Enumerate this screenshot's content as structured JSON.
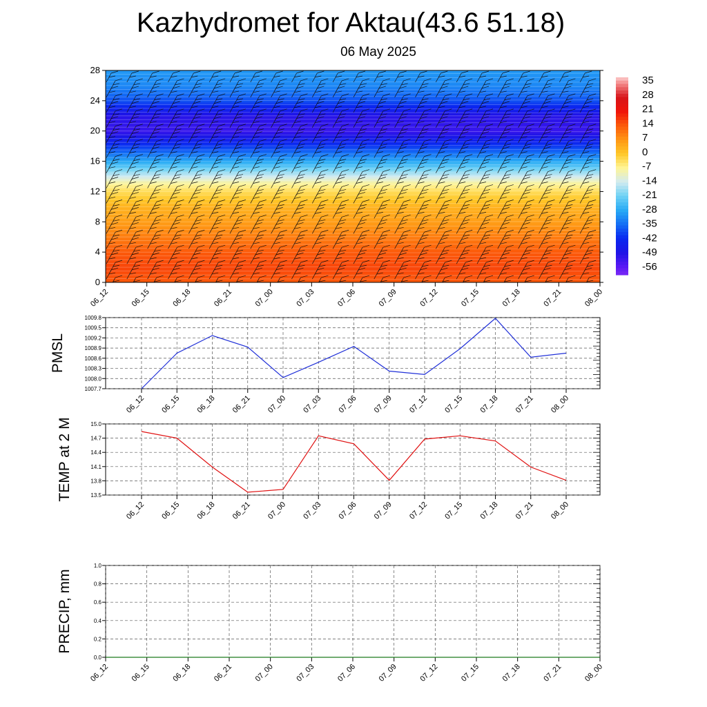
{
  "header": {
    "title": "Kazhydromet for Aktau(43.6 51.18)",
    "subtitle": "06 May 2025"
  },
  "colors": {
    "pmsl_line": "#1f2fd8",
    "temp_line": "#e01010",
    "precip_line": "#1a7a1a",
    "gridline": "#333333"
  },
  "colorbar": {
    "labels": [
      "35",
      "28",
      "21",
      "14",
      "7",
      "0",
      "-7",
      "-14",
      "-21",
      "-28",
      "-35",
      "-42",
      "-49",
      "-56"
    ]
  },
  "chart_data": [
    {
      "id": "cross-section",
      "type": "heatmap",
      "title": "",
      "xlabel": "",
      "ylabel": "",
      "x_ticks": [
        "06_12",
        "06_15",
        "06_18",
        "06_21",
        "07_00",
        "07_03",
        "07_06",
        "07_09",
        "07_12",
        "07_15",
        "07_18",
        "07_21",
        "08_00"
      ],
      "y_ticks": [
        "0",
        "4",
        "8",
        "12",
        "16",
        "20",
        "24",
        "28"
      ],
      "ylim": [
        0,
        28
      ],
      "colorbar_range": [
        -56,
        35
      ],
      "overlay": "wind barbs",
      "temperature_profile": {
        "heights": [
          0,
          2,
          4,
          6,
          8,
          10,
          11,
          12,
          13,
          14,
          16,
          18,
          20,
          22,
          24,
          26,
          28
        ],
        "values": [
          14,
          16,
          14,
          10,
          6,
          3,
          0,
          -3,
          -7,
          -14,
          -28,
          -40,
          -52,
          -50,
          -38,
          -32,
          -30
        ]
      }
    },
    {
      "id": "pmsl",
      "type": "line",
      "ylabel": "PMSL",
      "xlabel": "",
      "x": [
        "06_12",
        "06_15",
        "06_18",
        "06_21",
        "07_00",
        "07_03",
        "07_06",
        "07_09",
        "07_12",
        "07_15",
        "07_18",
        "07_21",
        "08_00"
      ],
      "y_ticks": [
        "1007.7",
        "1008.0",
        "1008.3",
        "1008.6",
        "1008.9",
        "1009.2",
        "1009.5",
        "1009.8"
      ],
      "ylim": [
        1007.7,
        1009.8
      ],
      "grid": true,
      "series": [
        {
          "values": [
            1007.7,
            1008.75,
            1009.27,
            1008.93,
            1008.03,
            1008.48,
            1008.95,
            1008.22,
            1008.12,
            1008.88,
            1009.78,
            1008.63,
            1008.75
          ]
        }
      ]
    },
    {
      "id": "temp2m",
      "type": "line",
      "ylabel": "TEMP at 2 M",
      "xlabel": "",
      "x": [
        "06_12",
        "06_15",
        "06_18",
        "06_21",
        "07_00",
        "07_03",
        "07_06",
        "07_09",
        "07_12",
        "07_15",
        "07_18",
        "07_21",
        "08_00"
      ],
      "y_ticks": [
        "13.5",
        "13.8",
        "14.1",
        "14.4",
        "14.7",
        "15.0"
      ],
      "ylim": [
        13.5,
        15.0
      ],
      "grid": true,
      "series": [
        {
          "values": [
            14.84,
            14.7,
            14.09,
            13.56,
            13.62,
            14.75,
            14.58,
            13.81,
            14.68,
            14.75,
            14.64,
            14.09,
            13.81
          ]
        }
      ]
    },
    {
      "id": "precip",
      "type": "line",
      "ylabel": "PRECIP, mm",
      "xlabel": "",
      "x": [
        "06_12",
        "06_15",
        "06_18",
        "06_21",
        "07_00",
        "07_03",
        "07_06",
        "07_09",
        "07_12",
        "07_15",
        "07_18",
        "07_21",
        "08_00"
      ],
      "y_ticks": [
        "0.0",
        "0.2",
        "0.4",
        "0.6",
        "0.8",
        "1.0"
      ],
      "ylim": [
        0,
        1.0
      ],
      "grid": true,
      "series": [
        {
          "values": [
            0,
            0,
            0,
            0,
            0,
            0,
            0,
            0,
            0,
            0,
            0,
            0,
            0
          ]
        }
      ]
    }
  ]
}
